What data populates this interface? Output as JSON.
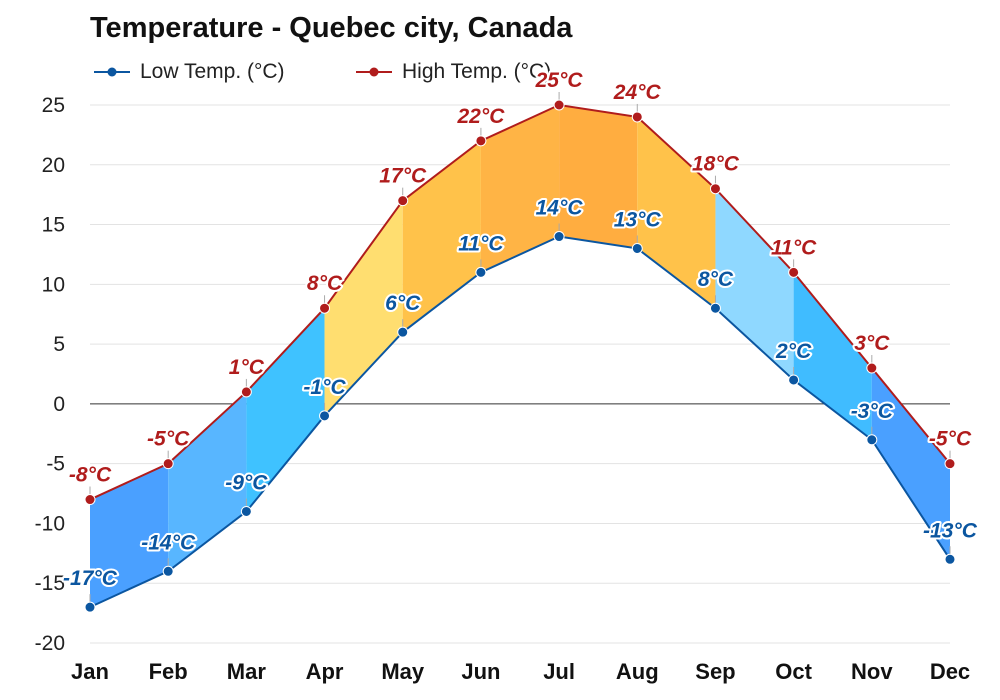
{
  "chart_data": {
    "type": "area",
    "title": "Temperature - Quebec city, Canada",
    "categories": [
      "Jan",
      "Feb",
      "Mar",
      "Apr",
      "May",
      "Jun",
      "Jul",
      "Aug",
      "Sep",
      "Oct",
      "Nov",
      "Dec"
    ],
    "series": [
      {
        "name": "Low Temp. (°C)",
        "values": [
          -17,
          -14,
          -9,
          -1,
          6,
          11,
          14,
          13,
          8,
          2,
          -3,
          -13
        ],
        "labels": [
          "-17°C",
          "-14°C",
          "-9°C",
          "-1°C",
          "6°C",
          "11°C",
          "14°C",
          "13°C",
          "8°C",
          "2°C",
          "-3°C",
          "-13°C"
        ],
        "color": "#0b56a0"
      },
      {
        "name": "High Temp. (°C)",
        "values": [
          -8,
          -5,
          1,
          8,
          17,
          22,
          25,
          24,
          18,
          11,
          3,
          -5
        ],
        "labels": [
          "-8°C",
          "-5°C",
          "1°C",
          "8°C",
          "17°C",
          "22°C",
          "25°C",
          "24°C",
          "18°C",
          "11°C",
          "3°C",
          "-5°C"
        ],
        "color": "#b01c1c"
      }
    ],
    "yticks": [
      "25",
      "20",
      "15",
      "10",
      "5",
      "0",
      "-5",
      "-10",
      "-15",
      "-20"
    ],
    "ylim": [
      -20,
      25
    ],
    "grid": true,
    "legend_position": "top-left",
    "band_colors": [
      "#4aa0ff",
      "#58b6ff",
      "#3fc2ff",
      "#ffde70",
      "#ffc24a",
      "#ffb445",
      "#ffad40",
      "#ffc24a",
      "#8fd8ff",
      "#40bcff",
      "#4aa0ff"
    ]
  }
}
